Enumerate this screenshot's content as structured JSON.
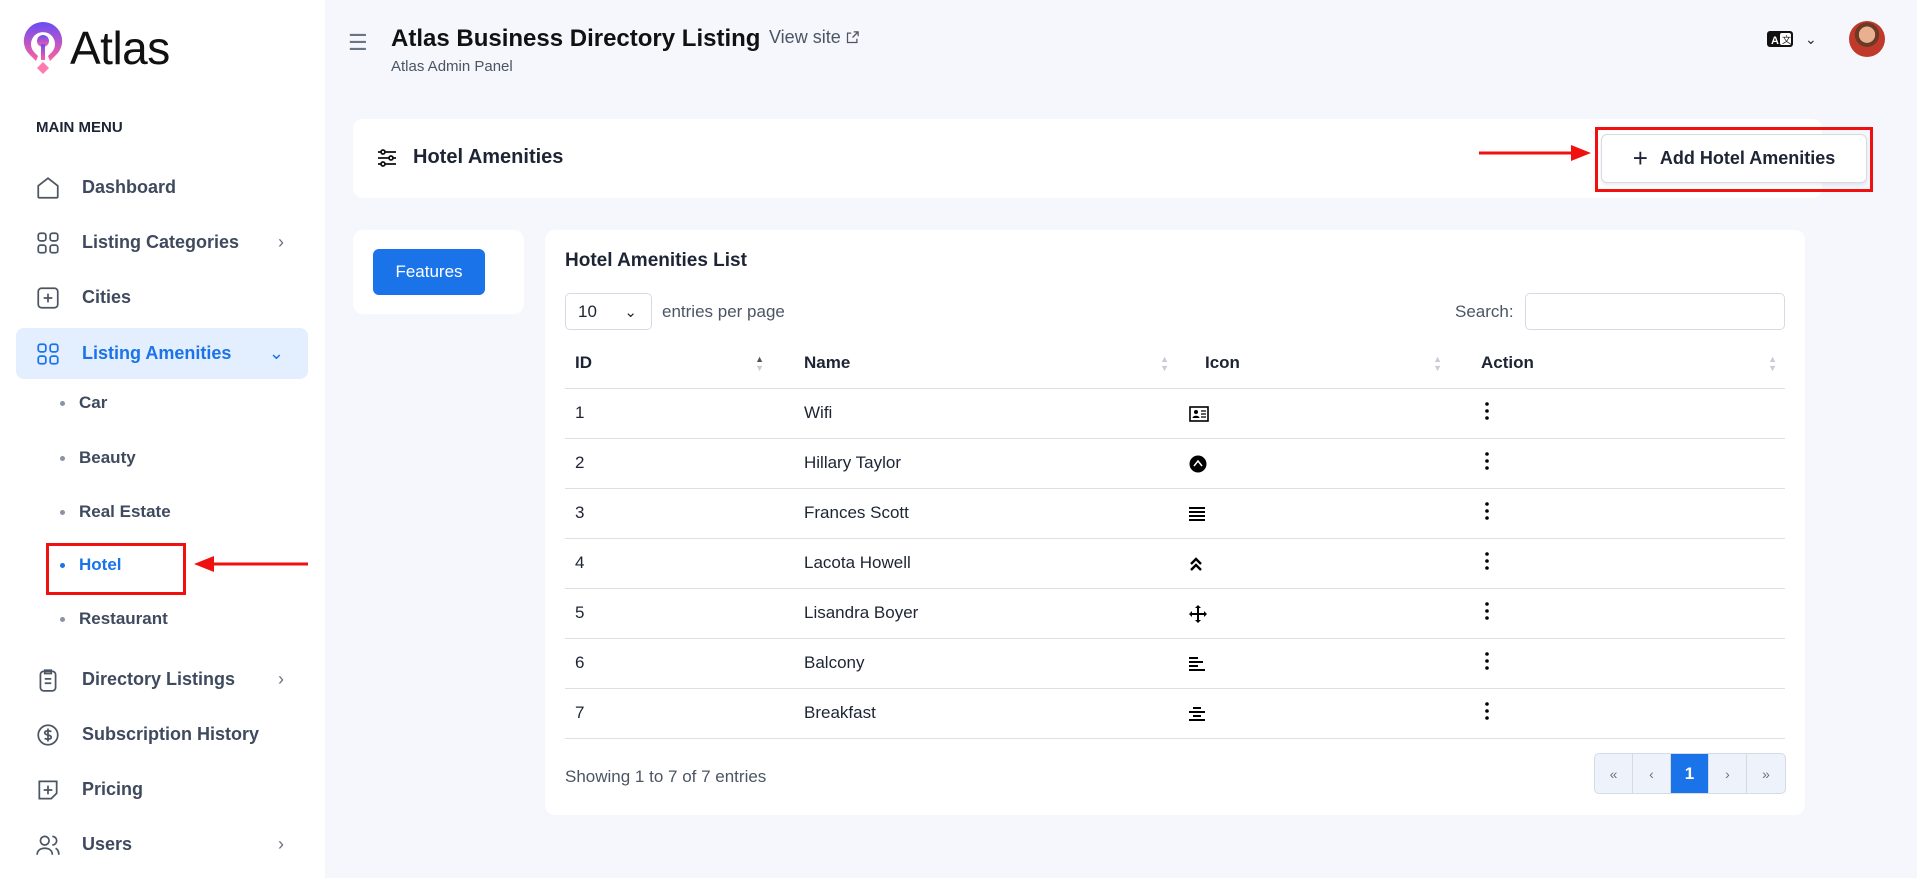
{
  "brand": {
    "name": "Atlas"
  },
  "header": {
    "title": "Atlas Business Directory Listing",
    "subtitle": "Atlas Admin Panel",
    "view_site": "View site"
  },
  "sidebar": {
    "menu_heading": "MAIN MENU",
    "items": [
      {
        "label": "Dashboard",
        "icon": "home-icon"
      },
      {
        "label": "Listing Categories",
        "icon": "grid-icon",
        "chevron": "›"
      },
      {
        "label": "Cities",
        "icon": "plus-square-icon"
      },
      {
        "label": "Listing Amenities",
        "icon": "grid-icon",
        "chevron": "⌄",
        "active": true
      },
      {
        "label": "Directory Listings",
        "icon": "clipboard-icon",
        "chevron": "›"
      },
      {
        "label": "Subscription History",
        "icon": "dollar-circle-icon"
      },
      {
        "label": "Pricing",
        "icon": "tag-plus-icon"
      },
      {
        "label": "Users",
        "icon": "users-icon",
        "chevron": "›"
      }
    ],
    "subitems": [
      {
        "label": "Car"
      },
      {
        "label": "Beauty"
      },
      {
        "label": "Real Estate"
      },
      {
        "label": "Hotel",
        "active": true
      },
      {
        "label": "Restaurant"
      }
    ]
  },
  "page": {
    "title": "Hotel Amenities",
    "add_button": "Add Hotel Amenities",
    "tab": "Features"
  },
  "list": {
    "title": "Hotel Amenities List",
    "page_size": "10",
    "entries_label": "entries per page",
    "search_label": "Search:",
    "search_value": "",
    "columns": [
      "ID",
      "Name",
      "Icon",
      "Action"
    ],
    "rows": [
      {
        "id": "1",
        "name": "Wifi",
        "icon": "id-card-icon"
      },
      {
        "id": "2",
        "name": "Hillary Taylor",
        "icon": "circle-chevron-up-icon"
      },
      {
        "id": "3",
        "name": "Frances Scott",
        "icon": "align-justify-icon"
      },
      {
        "id": "4",
        "name": "Lacota Howell",
        "icon": "angles-up-icon"
      },
      {
        "id": "5",
        "name": "Lisandra Boyer",
        "icon": "arrows-move-icon"
      },
      {
        "id": "6",
        "name": "Balcony",
        "icon": "align-left-icon"
      },
      {
        "id": "7",
        "name": "Breakfast",
        "icon": "align-center-icon"
      }
    ],
    "footer": "Showing 1 to 7 of 7 entries",
    "pagination": [
      "«",
      "‹",
      "1",
      "›",
      "»"
    ],
    "current_page": "1"
  },
  "colors": {
    "accent": "#1a73e8",
    "annotation": "#f01010"
  }
}
